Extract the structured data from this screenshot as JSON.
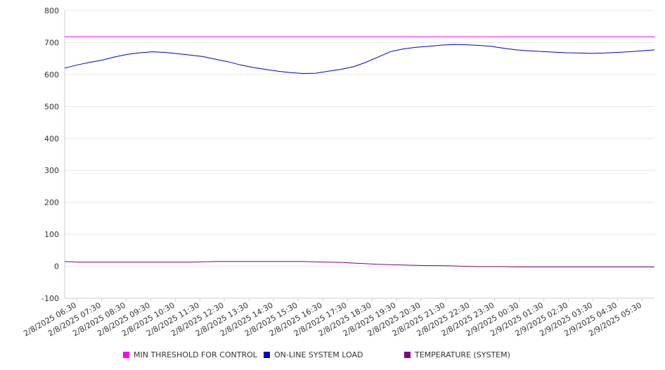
{
  "chart_data": {
    "type": "line",
    "title": "",
    "xlabel": "",
    "ylabel": "",
    "ylim": [
      -100,
      800
    ],
    "y_ticks": [
      800,
      700,
      600,
      500,
      400,
      300,
      200,
      100,
      0,
      -100
    ],
    "x_tick_labels": [
      "2/8/2025 06:30",
      "2/8/2025 07:30",
      "2/8/2025 08:30",
      "2/8/2025 09:30",
      "2/8/2025 10:30",
      "2/8/2025 11:30",
      "2/8/2025 12:30",
      "2/8/2025 13:30",
      "2/8/2025 14:30",
      "2/8/2025 15:30",
      "2/8/2025 16:30",
      "2/8/2025 17:30",
      "2/8/2025 18:30",
      "2/8/2025 19:30",
      "2/8/2025 20:30",
      "2/8/2025 21:30",
      "2/8/2025 22:30",
      "2/8/2025 23:30",
      "2/9/2025 00:30",
      "2/9/2025 01:30",
      "2/9/2025 02:30",
      "2/9/2025 03:30",
      "2/9/2025 04:30",
      "2/9/2025 05:30"
    ],
    "x": [
      "2/8/2025 06:30",
      "2/8/2025 07:00",
      "2/8/2025 07:30",
      "2/8/2025 08:00",
      "2/8/2025 08:30",
      "2/8/2025 09:00",
      "2/8/2025 09:30",
      "2/8/2025 10:00",
      "2/8/2025 10:30",
      "2/8/2025 11:00",
      "2/8/2025 11:30",
      "2/8/2025 12:00",
      "2/8/2025 12:30",
      "2/8/2025 13:00",
      "2/8/2025 13:30",
      "2/8/2025 14:00",
      "2/8/2025 14:30",
      "2/8/2025 15:00",
      "2/8/2025 15:30",
      "2/8/2025 16:00",
      "2/8/2025 16:30",
      "2/8/2025 17:00",
      "2/8/2025 17:30",
      "2/8/2025 18:00",
      "2/8/2025 18:30",
      "2/8/2025 19:00",
      "2/8/2025 19:30",
      "2/8/2025 20:00",
      "2/8/2025 20:30",
      "2/8/2025 21:00",
      "2/8/2025 21:30",
      "2/8/2025 22:00",
      "2/8/2025 22:30",
      "2/8/2025 23:00",
      "2/8/2025 23:30",
      "2/9/2025 00:00",
      "2/9/2025 00:30",
      "2/9/2025 01:00",
      "2/9/2025 01:30",
      "2/9/2025 02:00",
      "2/9/2025 02:30",
      "2/9/2025 03:00",
      "2/9/2025 03:30",
      "2/9/2025 04:00",
      "2/9/2025 04:30",
      "2/9/2025 05:00",
      "2/9/2025 05:30",
      "2/9/2025 06:00"
    ],
    "grid": true,
    "legend_position": "bottom",
    "series": [
      {
        "name": "MIN THRESHOLD FOR CONTROL",
        "color": "#ff00ff",
        "values": [
          718,
          718,
          718,
          718,
          718,
          718,
          718,
          718,
          718,
          718,
          718,
          718,
          718,
          718,
          718,
          718,
          718,
          718,
          718,
          718,
          718,
          718,
          718,
          718,
          718,
          718,
          718,
          718,
          718,
          718,
          718,
          718,
          718,
          718,
          718,
          718,
          718,
          718,
          718,
          718,
          718,
          718,
          718,
          718,
          718,
          718,
          718,
          718
        ]
      },
      {
        "name": "ON-LINE SYSTEM LOAD",
        "color": "#0000cc",
        "values": [
          620,
          630,
          638,
          645,
          655,
          663,
          668,
          671,
          669,
          665,
          661,
          656,
          648,
          640,
          630,
          622,
          616,
          610,
          606,
          603,
          604,
          610,
          616,
          624,
          638,
          655,
          672,
          680,
          685,
          688,
          692,
          694,
          693,
          691,
          688,
          682,
          677,
          674,
          672,
          670,
          668,
          667,
          666,
          667,
          669,
          671,
          674,
          677
        ]
      },
      {
        "name": "TEMPERATURE (SYSTEM)",
        "color": "#800080",
        "values": [
          15,
          13,
          13,
          13,
          13,
          13,
          13,
          13,
          13,
          13,
          13,
          14,
          15,
          15,
          15,
          15,
          15,
          15,
          15,
          15,
          14,
          13,
          12,
          10,
          8,
          6,
          5,
          4,
          3,
          2,
          2,
          1,
          0,
          -1,
          -1,
          -1,
          -2,
          -2,
          -2,
          -2,
          -2,
          -2,
          -2,
          -2,
          -2,
          -2,
          -2,
          -2
        ]
      }
    ]
  }
}
